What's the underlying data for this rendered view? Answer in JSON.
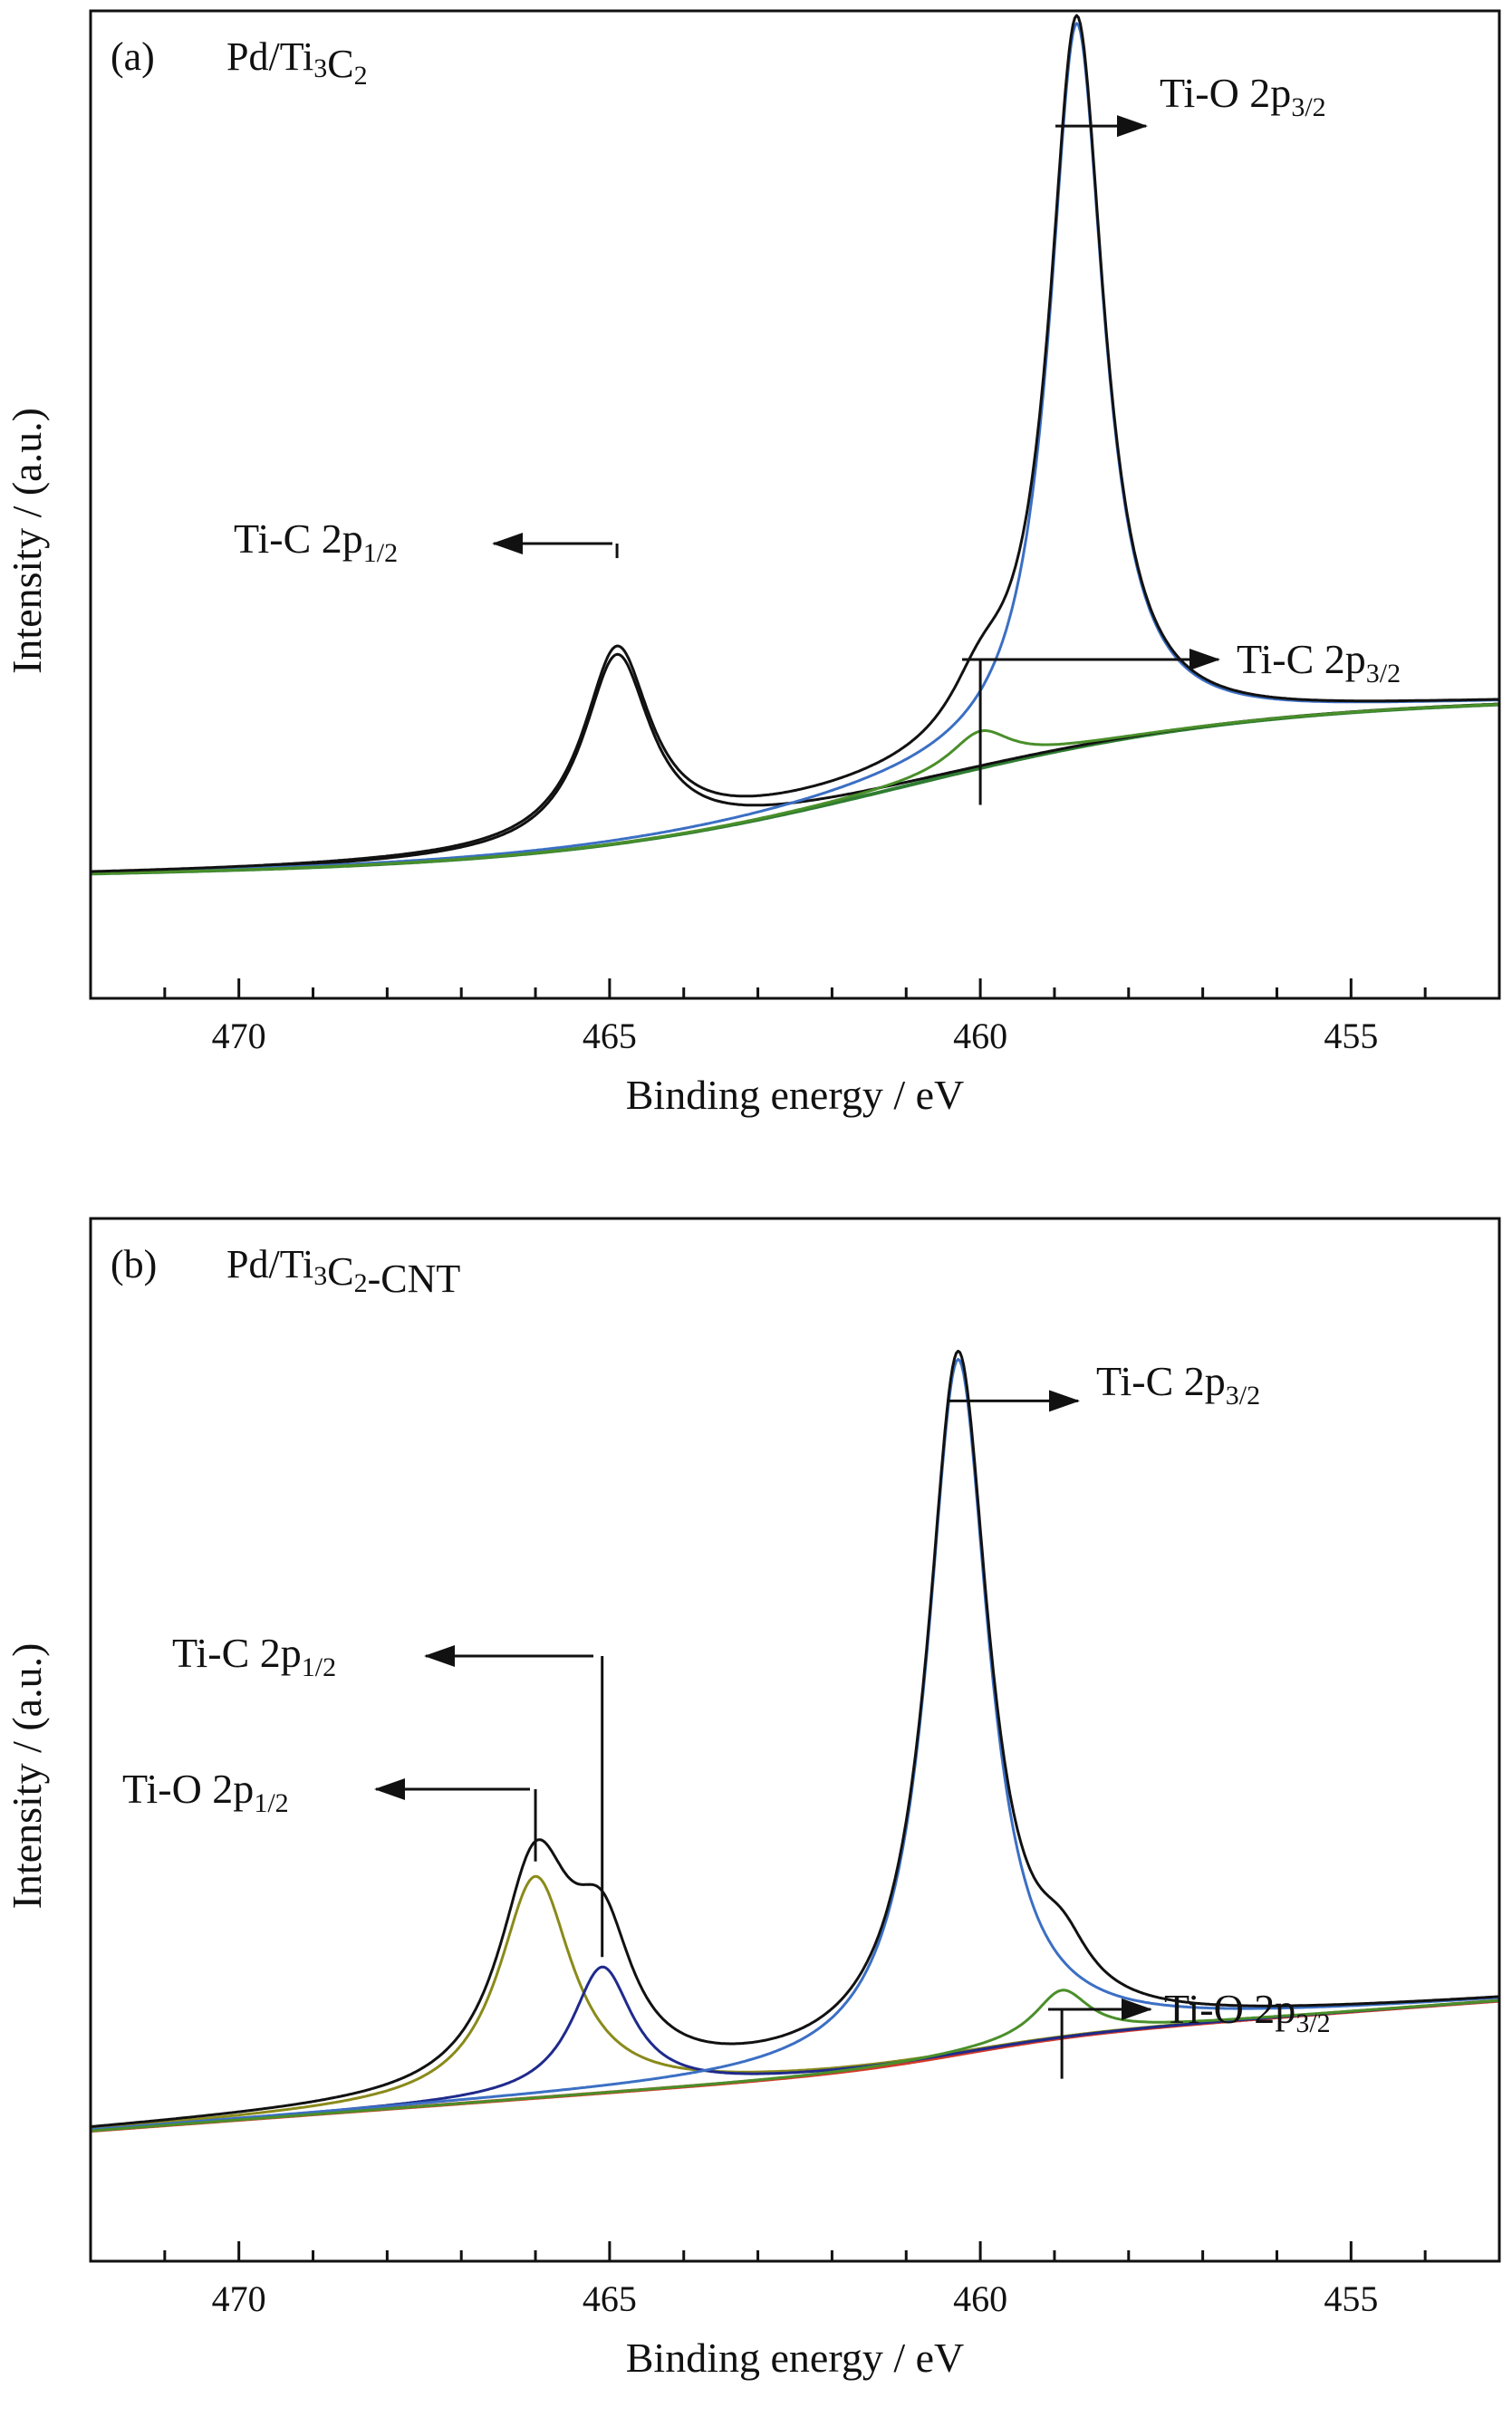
{
  "chart_data": [
    {
      "type": "line",
      "panel_label": "(a)",
      "title": {
        "prefix": "Pd/Ti",
        "sub1": "3",
        "mid": "C",
        "sub2": "2",
        "suffix": ""
      },
      "xlabel": "Binding energy / eV",
      "ylabel": "Intensity / (a.u.)",
      "xlim": [
        472,
        453
      ],
      "ylim": [
        -0.15,
        1.05
      ],
      "x_ticks": [
        470,
        465,
        460,
        455
      ],
      "x_reversed": true,
      "y_ticks_shown": false,
      "background": {
        "b0": 0.0,
        "b1": 0.19,
        "step_center": 461.0,
        "step_width": 2.3,
        "slope": 0.0012,
        "x_ref": 472
      },
      "series": [
        {
          "role": "background",
          "color": "#2f7d32",
          "peaks": []
        },
        {
          "role": "component",
          "color": "#111111",
          "peaks": [
            {
              "center": 464.9,
              "height": 0.23,
              "width": 0.55
            }
          ]
        },
        {
          "role": "component",
          "color": "#3b6fc4",
          "peaks": [
            {
              "center": 458.7,
              "height": 0.88,
              "width": 0.45
            }
          ]
        },
        {
          "role": "component",
          "color": "#4a8f2a",
          "peaks": [
            {
              "center": 460.0,
              "height": 0.045,
              "width": 0.5
            }
          ]
        },
        {
          "role": "envelope",
          "color": "#111111",
          "peaks": [
            {
              "center": 464.9,
              "height": 0.235,
              "width": 0.55
            },
            {
              "center": 458.7,
              "height": 0.88,
              "width": 0.45
            },
            {
              "center": 460.0,
              "height": 0.06,
              "width": 0.5
            }
          ]
        }
      ],
      "annotations": [
        {
          "label": "Ti-O 2p",
          "sub": "3/2",
          "x": 458.7,
          "y": 0.91,
          "direction": "right",
          "stem": false,
          "tx": 1280,
          "ty": 118,
          "ax1": 1165,
          "ax2": 1265
        },
        {
          "label": "Ti-C 2p",
          "sub": "1/2",
          "x": 464.9,
          "y": 0.385,
          "direction": "left",
          "stem": true,
          "stem_y": 600,
          "tx": 258,
          "ty": 610,
          "ax1": 676,
          "ax2": 545
        },
        {
          "label": "Ti-C 2p",
          "sub": "3/2",
          "x": 460.0,
          "y": 0.085,
          "direction": "right",
          "stem": true,
          "stem_y": 728,
          "tx": 1365,
          "ty": 743,
          "ax1": 1062,
          "ax2": 1345
        }
      ]
    },
    {
      "type": "line",
      "panel_label": "(b)",
      "title": {
        "prefix": "Pd/Ti",
        "sub1": "3",
        "mid": "C",
        "sub2": "2",
        "suffix": "-CNT"
      },
      "xlabel": "Binding energy / eV",
      "ylabel": "Intensity / (a.u.)",
      "xlim": [
        472,
        453
      ],
      "ylim": [
        -0.15,
        1.05
      ],
      "x_ticks": [
        470,
        465,
        460,
        455
      ],
      "x_reversed": true,
      "y_ticks_shown": false,
      "background": {
        "b0": 0.0,
        "b1": 0.03,
        "step_center": 460.2,
        "step_width": 0.9,
        "slope": 0.0063,
        "x_ref": 472
      },
      "series": [
        {
          "role": "background",
          "color": "#d23a2a",
          "peaks": []
        },
        {
          "role": "component",
          "color": "#8a8a1a",
          "peaks": [
            {
              "center": 466.0,
              "height": 0.255,
              "width": 0.6
            }
          ]
        },
        {
          "role": "component",
          "color": "#1f2a8c",
          "peaks": [
            {
              "center": 465.1,
              "height": 0.145,
              "width": 0.5
            }
          ]
        },
        {
          "role": "component",
          "color": "#3b6fc4",
          "peaks": [
            {
              "center": 460.3,
              "height": 0.8,
              "width": 0.5
            }
          ]
        },
        {
          "role": "component",
          "color": "#4a8f2a",
          "peaks": [
            {
              "center": 458.9,
              "height": 0.055,
              "width": 0.45
            }
          ]
        },
        {
          "role": "envelope",
          "color": "#111111",
          "peaks": [
            {
              "center": 466.0,
              "height": 0.255,
              "width": 0.6
            },
            {
              "center": 465.1,
              "height": 0.145,
              "width": 0.5
            },
            {
              "center": 460.3,
              "height": 0.8,
              "width": 0.5
            },
            {
              "center": 458.9,
              "height": 0.055,
              "width": 0.45
            }
          ]
        }
      ],
      "annotations": [
        {
          "label": "Ti-C 2p",
          "sub": "3/2",
          "x": 460.3,
          "y": 0.84,
          "direction": "right",
          "stem": false,
          "tx": 1210,
          "ty": 1540,
          "ax1": 1045,
          "ax2": 1190
        },
        {
          "label": "Ti-C 2p",
          "sub": "1/2",
          "x": 465.1,
          "y": 0.2,
          "direction": "left",
          "stem": true,
          "stem_y": 1828,
          "tx": 190,
          "ty": 1840,
          "ax1": 655,
          "ax2": 470
        },
        {
          "label": "Ti-O 2p",
          "sub": "1/2",
          "x": 466.0,
          "y": 0.31,
          "direction": "left",
          "stem": true,
          "stem_y": 1975,
          "tx": 135,
          "ty": 1990,
          "ax1": 585,
          "ax2": 415
        },
        {
          "label": "Ti-O 2p",
          "sub": "3/2",
          "x": 458.9,
          "y": 0.06,
          "direction": "right",
          "stem": true,
          "stem_y": 2218,
          "tx": 1285,
          "ty": 2233,
          "ax1": 1157,
          "ax2": 1270
        }
      ]
    }
  ]
}
